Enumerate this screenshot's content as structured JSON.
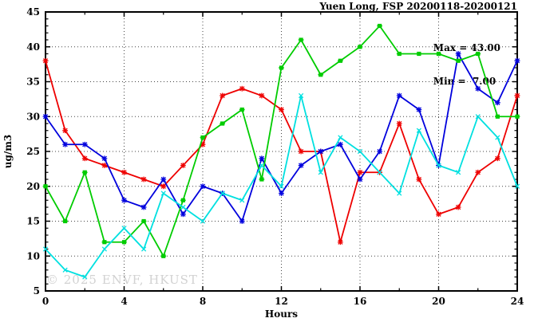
{
  "title": "Yuen Long, FSP 20200118-20200121",
  "annotation": {
    "max_label": "Max = 43.00",
    "min_label": "Min =  7.00"
  },
  "watermark": "© 2025 ENVF, HKUST",
  "chart_data": {
    "type": "line",
    "title": "Yuen Long, FSP 20200118-20200121",
    "xlabel": "Hours",
    "ylabel": "ug/m3",
    "xlim": [
      0,
      24
    ],
    "ylim": [
      5,
      45
    ],
    "x_major_ticks": [
      0,
      4,
      8,
      12,
      16,
      20,
      24
    ],
    "x_minor_step": 2,
    "y_major_ticks": [
      5,
      10,
      15,
      20,
      25,
      30,
      35,
      40,
      45
    ],
    "y_minor_step": 1,
    "grid": "dotted lines at interior major ticks",
    "legend": "none",
    "x": [
      0,
      1,
      2,
      3,
      4,
      5,
      6,
      7,
      8,
      9,
      10,
      11,
      12,
      13,
      14,
      15,
      16,
      17,
      18,
      19,
      20,
      21,
      22,
      23,
      24
    ],
    "series": [
      {
        "name": "series-red",
        "color": "#ee0000",
        "marker": "asterisk",
        "values": [
          38,
          28,
          24,
          23,
          22,
          21,
          20,
          23,
          26,
          33,
          34,
          33,
          31,
          25,
          25,
          12,
          22,
          22,
          29,
          21,
          16,
          17,
          22,
          24,
          33
        ]
      },
      {
        "name": "series-blue",
        "color": "#0000dd",
        "marker": "asterisk",
        "values": [
          30,
          26,
          26,
          24,
          18,
          17,
          21,
          16,
          20,
          19,
          15,
          24,
          19,
          23,
          25,
          26,
          21,
          25,
          33,
          31,
          23,
          39,
          34,
          32,
          38
        ]
      },
      {
        "name": "series-green",
        "color": "#00cc00",
        "marker": "square",
        "values": [
          20,
          15,
          22,
          12,
          12,
          15,
          10,
          18,
          27,
          29,
          31,
          21,
          37,
          41,
          36,
          38,
          40,
          43,
          39,
          39,
          39,
          38,
          39,
          30,
          30
        ]
      },
      {
        "name": "series-cyan",
        "color": "#00e0e0",
        "marker": "x",
        "values": [
          11,
          8,
          7,
          11,
          14,
          11,
          19,
          17,
          15,
          19,
          18,
          23,
          20,
          33,
          22,
          27,
          25,
          22,
          19,
          28,
          23,
          22,
          30,
          27,
          20
        ]
      }
    ],
    "stats": {
      "max": 43.0,
      "min": 7.0
    }
  }
}
